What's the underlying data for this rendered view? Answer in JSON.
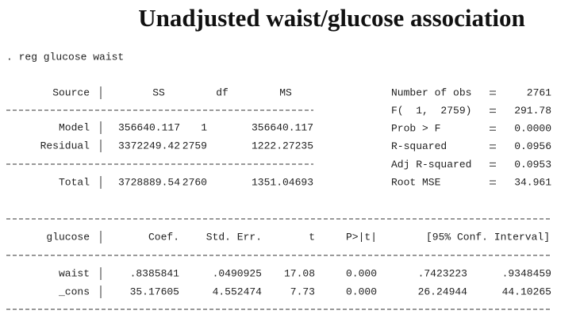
{
  "title": "Unadjusted waist/glucose association",
  "command": ". reg glucose waist",
  "anova": {
    "header": [
      "Source",
      "SS",
      "df",
      "MS"
    ],
    "rows": [
      [
        "Model",
        "356640.117",
        "1",
        "356640.117"
      ],
      [
        "Residual",
        "3372249.42",
        "2759",
        "1222.27235"
      ]
    ],
    "total": [
      "Total",
      "3728889.54",
      "2760",
      "1351.04693"
    ]
  },
  "stats": [
    {
      "label": "Number of obs",
      "value": "2761"
    },
    {
      "label": "F(  1,  2759)",
      "value": "291.78"
    },
    {
      "label": "Prob > F",
      "value": "0.0000"
    },
    {
      "label": "R-squared",
      "value": "0.0956"
    },
    {
      "label": "Adj R-squared",
      "value": "0.0953"
    },
    {
      "label": "Root MSE",
      "value": "34.961"
    }
  ],
  "coef": {
    "header": [
      "glucose",
      "Coef.",
      "Std. Err.",
      "t",
      "P>|t|",
      "[95% Conf. Interval]"
    ],
    "rows": [
      [
        "waist",
        ".8385841",
        ".0490925",
        "17.08",
        "0.000",
        ".7423223",
        ".9348459"
      ],
      [
        "_cons",
        "35.17605",
        "4.552474",
        "7.73",
        "0.000",
        "26.24944",
        "44.10265"
      ]
    ]
  }
}
